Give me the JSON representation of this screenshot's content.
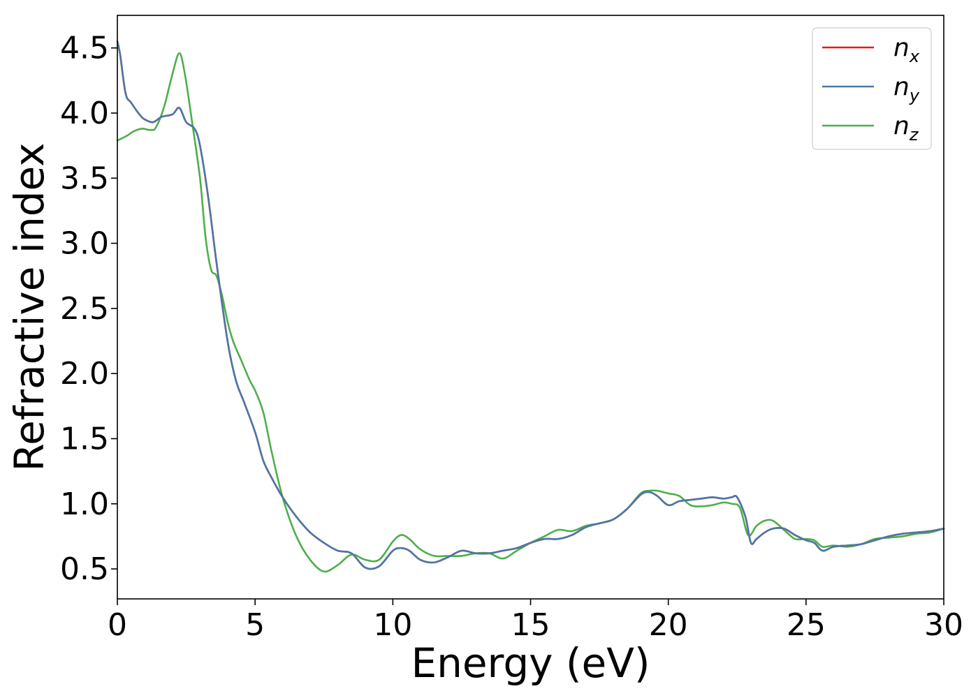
{
  "chart_data": {
    "type": "line",
    "xlabel": "Energy (eV)",
    "ylabel": "Refractive index",
    "xlim": [
      0,
      30
    ],
    "ylim": [
      0.27,
      4.75
    ],
    "xticks": [
      0,
      5,
      10,
      15,
      20,
      25,
      30
    ],
    "xtick_labels": [
      "0",
      "5",
      "10",
      "15",
      "20",
      "25",
      "30"
    ],
    "yticks": [
      0.5,
      1.0,
      1.5,
      2.0,
      2.5,
      3.0,
      3.5,
      4.0,
      4.5
    ],
    "ytick_labels": [
      "0.5",
      "1.0",
      "1.5",
      "2.0",
      "2.5",
      "3.0",
      "3.5",
      "4.0",
      "4.5"
    ],
    "grid": false,
    "legend": "top-right",
    "series": [
      {
        "name": "n",
        "sub": "x",
        "color": "#e41a1c",
        "x": [
          0,
          0.1,
          0.3,
          0.5,
          0.8,
          1.0,
          1.3,
          1.6,
          2.0,
          2.25,
          2.5,
          2.8,
          3.0,
          3.3,
          3.6,
          4.0,
          4.3,
          4.6,
          5.0,
          5.3,
          5.6,
          6.0,
          6.5,
          7.0,
          7.5,
          8.0,
          8.5,
          9.0,
          9.5,
          10.0,
          10.3,
          10.6,
          11.0,
          11.5,
          12.0,
          12.5,
          13.0,
          13.5,
          14.0,
          14.5,
          15.0,
          15.5,
          16.0,
          16.5,
          17.0,
          17.5,
          18.0,
          18.5,
          19.0,
          19.3,
          19.6,
          20.0,
          20.4,
          20.8,
          21.2,
          21.6,
          22.0,
          22.3,
          22.5,
          22.8,
          23.0,
          23.2,
          23.5,
          23.8,
          24.2,
          24.6,
          25.0,
          25.3,
          25.6,
          26.0,
          26.5,
          27.0,
          27.5,
          28.0,
          28.5,
          29.0,
          29.5,
          30.0
        ],
        "y": [
          4.55,
          4.45,
          4.15,
          4.08,
          3.99,
          3.95,
          3.93,
          3.97,
          3.99,
          4.04,
          3.93,
          3.88,
          3.75,
          3.35,
          2.85,
          2.25,
          1.95,
          1.78,
          1.55,
          1.33,
          1.2,
          1.05,
          0.9,
          0.78,
          0.7,
          0.64,
          0.62,
          0.51,
          0.52,
          0.64,
          0.66,
          0.64,
          0.57,
          0.55,
          0.59,
          0.64,
          0.62,
          0.62,
          0.64,
          0.66,
          0.7,
          0.73,
          0.73,
          0.76,
          0.82,
          0.85,
          0.88,
          0.96,
          1.07,
          1.09,
          1.06,
          0.99,
          1.02,
          1.03,
          1.04,
          1.05,
          1.04,
          1.05,
          1.05,
          0.9,
          0.7,
          0.73,
          0.78,
          0.81,
          0.81,
          0.76,
          0.72,
          0.7,
          0.64,
          0.67,
          0.68,
          0.69,
          0.72,
          0.75,
          0.77,
          0.78,
          0.79,
          0.81
        ]
      },
      {
        "name": "n",
        "sub": "y",
        "color": "#4a78a8",
        "x": [
          0,
          0.1,
          0.3,
          0.5,
          0.8,
          1.0,
          1.3,
          1.6,
          2.0,
          2.25,
          2.5,
          2.8,
          3.0,
          3.3,
          3.6,
          4.0,
          4.3,
          4.6,
          5.0,
          5.3,
          5.6,
          6.0,
          6.5,
          7.0,
          7.5,
          8.0,
          8.5,
          9.0,
          9.5,
          10.0,
          10.3,
          10.6,
          11.0,
          11.5,
          12.0,
          12.5,
          13.0,
          13.5,
          14.0,
          14.5,
          15.0,
          15.5,
          16.0,
          16.5,
          17.0,
          17.5,
          18.0,
          18.5,
          19.0,
          19.3,
          19.6,
          20.0,
          20.4,
          20.8,
          21.2,
          21.6,
          22.0,
          22.3,
          22.5,
          22.8,
          23.0,
          23.2,
          23.5,
          23.8,
          24.2,
          24.6,
          25.0,
          25.3,
          25.6,
          26.0,
          26.5,
          27.0,
          27.5,
          28.0,
          28.5,
          29.0,
          29.5,
          30.0
        ],
        "y": [
          4.55,
          4.45,
          4.15,
          4.08,
          3.99,
          3.95,
          3.93,
          3.97,
          3.99,
          4.04,
          3.93,
          3.88,
          3.75,
          3.35,
          2.85,
          2.25,
          1.95,
          1.78,
          1.55,
          1.33,
          1.2,
          1.05,
          0.9,
          0.78,
          0.7,
          0.64,
          0.62,
          0.51,
          0.52,
          0.64,
          0.66,
          0.64,
          0.57,
          0.55,
          0.59,
          0.64,
          0.62,
          0.62,
          0.64,
          0.66,
          0.7,
          0.73,
          0.73,
          0.76,
          0.82,
          0.85,
          0.88,
          0.96,
          1.07,
          1.09,
          1.06,
          0.99,
          1.02,
          1.03,
          1.04,
          1.05,
          1.04,
          1.05,
          1.05,
          0.9,
          0.7,
          0.73,
          0.78,
          0.81,
          0.81,
          0.76,
          0.72,
          0.7,
          0.64,
          0.67,
          0.68,
          0.69,
          0.72,
          0.75,
          0.77,
          0.78,
          0.79,
          0.81
        ]
      },
      {
        "name": "n",
        "sub": "z",
        "color": "#4daf4a",
        "x": [
          0,
          0.3,
          0.6,
          0.9,
          1.2,
          1.4,
          1.7,
          2.0,
          2.25,
          2.45,
          2.7,
          3.0,
          3.2,
          3.4,
          3.6,
          3.8,
          4.0,
          4.2,
          4.5,
          4.8,
          5.0,
          5.3,
          5.6,
          6.0,
          6.5,
          7.0,
          7.5,
          8.0,
          8.5,
          9.0,
          9.5,
          10.0,
          10.3,
          10.6,
          11.0,
          11.5,
          12.0,
          12.5,
          13.0,
          13.5,
          14.0,
          14.5,
          15.0,
          15.5,
          16.0,
          16.5,
          17.0,
          17.5,
          18.0,
          18.5,
          19.0,
          19.3,
          19.6,
          20.0,
          20.4,
          20.8,
          21.2,
          21.6,
          22.0,
          22.3,
          22.6,
          22.9,
          23.2,
          23.5,
          23.8,
          24.2,
          24.6,
          25.0,
          25.3,
          25.6,
          26.0,
          26.5,
          27.0,
          27.5,
          28.0,
          28.5,
          29.0,
          29.5,
          30.0
        ],
        "y": [
          3.79,
          3.82,
          3.86,
          3.88,
          3.87,
          3.89,
          4.05,
          4.3,
          4.46,
          4.3,
          3.95,
          3.5,
          3.05,
          2.8,
          2.75,
          2.6,
          2.4,
          2.25,
          2.1,
          1.95,
          1.87,
          1.7,
          1.4,
          1.05,
          0.75,
          0.57,
          0.48,
          0.53,
          0.61,
          0.57,
          0.57,
          0.71,
          0.76,
          0.73,
          0.65,
          0.6,
          0.6,
          0.6,
          0.62,
          0.62,
          0.58,
          0.64,
          0.7,
          0.75,
          0.8,
          0.79,
          0.83,
          0.85,
          0.88,
          0.96,
          1.08,
          1.1,
          1.1,
          1.08,
          1.06,
          0.99,
          0.98,
          0.99,
          1.01,
          1.0,
          0.97,
          0.76,
          0.83,
          0.87,
          0.87,
          0.8,
          0.73,
          0.73,
          0.72,
          0.67,
          0.68,
          0.67,
          0.69,
          0.73,
          0.74,
          0.75,
          0.77,
          0.78,
          0.81
        ]
      }
    ]
  }
}
